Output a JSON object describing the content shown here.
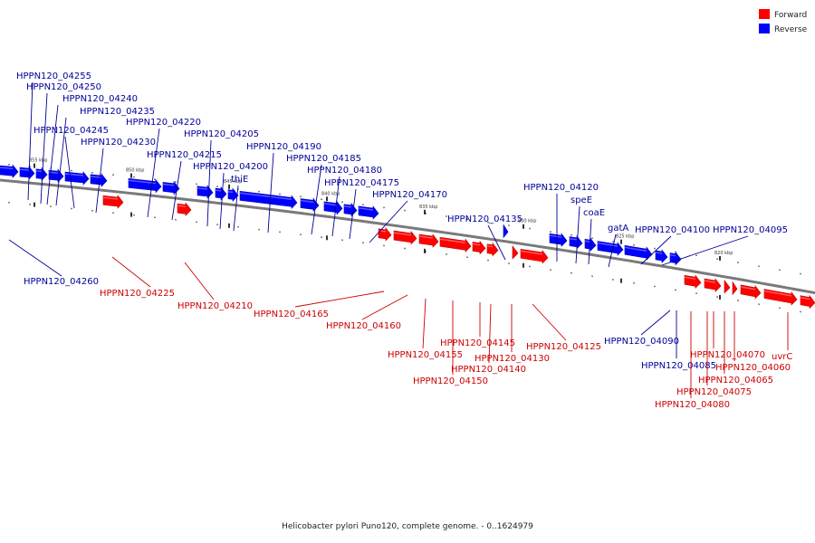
{
  "caption": "Helicobacter pylori Puno120, complete genome. - 0..1624979",
  "legend": [
    {
      "label": "Forward",
      "color": "#ff0000"
    },
    {
      "label": "Reverse",
      "color": "#0000ff"
    }
  ],
  "colors": {
    "forward": "#ff0000",
    "forward_dark": "#c00000",
    "reverse": "#0000ff",
    "reverse_dark": "#0000b8",
    "forward_label": "#cc0000",
    "reverse_label": "#000099",
    "backbone": "#7a7a7a"
  },
  "tick_labels": [
    "855 kbp",
    "850 kbp",
    "845 kbp",
    "840 kbp",
    "835 kbp",
    "830 kbp",
    "825 kbp",
    "820 kbp"
  ],
  "reverse_genes": [
    "HPPN120_04255",
    "HPPN120_04250",
    "HPPN120_04240",
    "HPPN120_04235",
    "HPPN120_04245",
    "HPPN120_04230",
    "HPPN120_04220",
    "HPPN120_04215",
    "HPPN120_04205",
    "HPPN120_04200",
    "thiE",
    "HPPN120_04190",
    "HPPN120_04185",
    "HPPN120_04180",
    "HPPN120_04175",
    "HPPN120_04170",
    "HPPN120_04135",
    "HPPN120_04120",
    "speE",
    "coaE",
    "gatA",
    "HPPN120_04100",
    "HPPN120_04095",
    "HPPN120_04260",
    "HPPN120_04090",
    "HPPN120_04085"
  ],
  "forward_genes": [
    "HPPN120_04225",
    "HPPN120_04210",
    "HPPN120_04165",
    "HPPN120_04160",
    "HPPN120_04145",
    "HPPN120_04155",
    "HPPN120_04130",
    "HPPN120_04140",
    "HPPN120_04150",
    "HPPN120_04125",
    "HPPN120_04070",
    "uvrC",
    "HPPN120_04060",
    "HPPN120_04065",
    "HPPN120_04075",
    "HPPN120_04080"
  ]
}
